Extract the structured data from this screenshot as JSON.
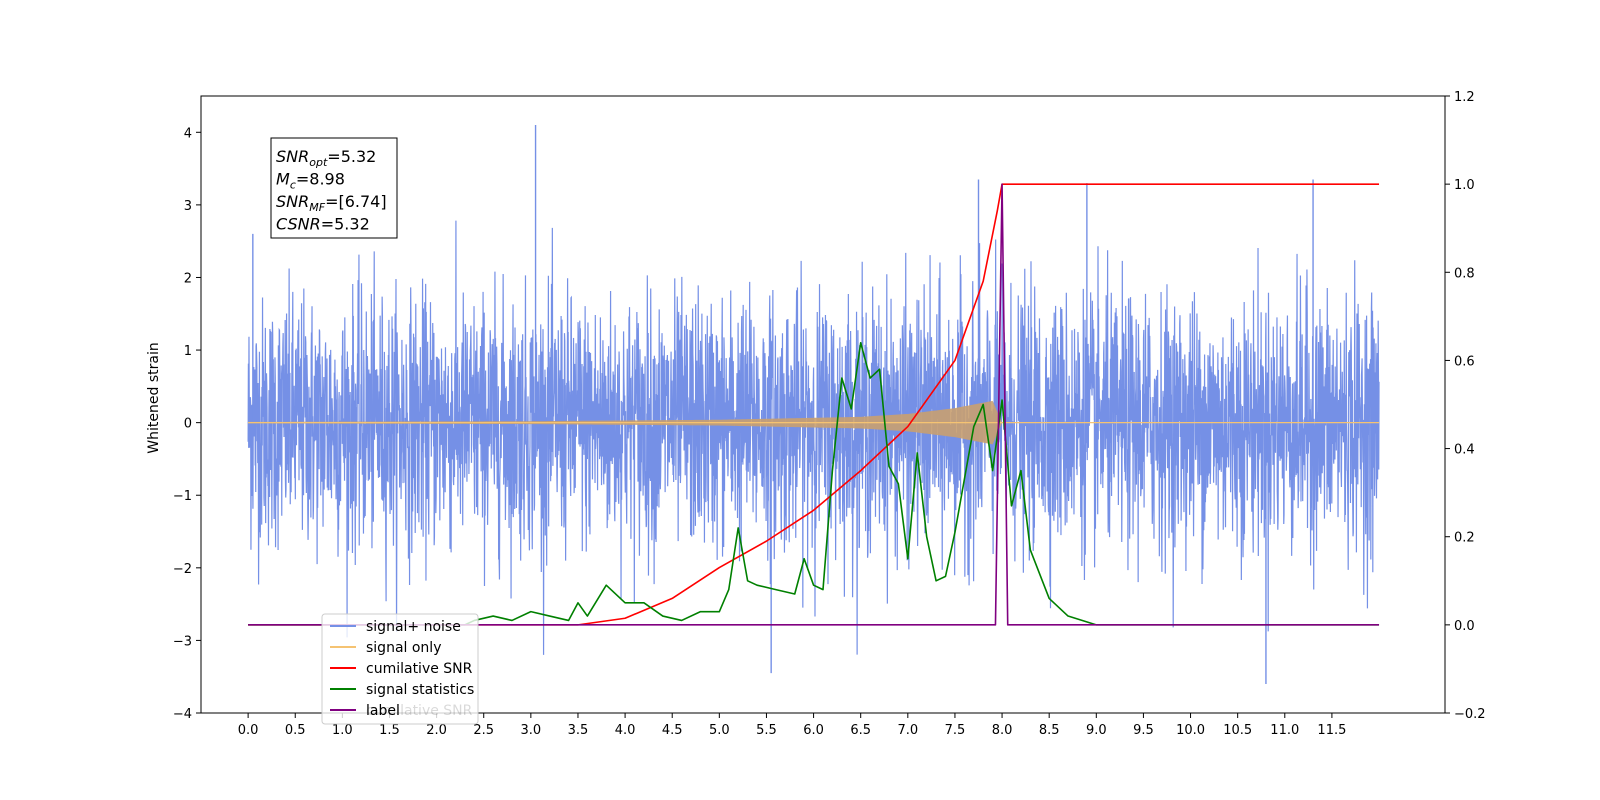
{
  "chart_data": {
    "type": "line",
    "title": "",
    "xlabel": "",
    "ylabel": "Whitened strain",
    "xlim": [
      -0.5,
      12.7
    ],
    "ylim_left": [
      -4,
      4.5
    ],
    "ylim_right": [
      -0.2,
      1.2
    ],
    "x_ticks": [
      "0.0",
      "0.5",
      "1.0",
      "1.5",
      "2.0",
      "2.5",
      "3.0",
      "3.5",
      "4.0",
      "4.5",
      "5.0",
      "5.5",
      "6.0",
      "6.5",
      "7.0",
      "7.5",
      "8.0",
      "8.5",
      "9.0",
      "9.5",
      "10.0",
      "10.5",
      "11.0",
      "11.5"
    ],
    "y_ticks_left": [
      "4",
      "3",
      "2",
      "1",
      "0",
      "−1",
      "−2",
      "−3",
      "−4"
    ],
    "y_ticks_right": [
      "1.2",
      "1.0",
      "0.8",
      "0.6",
      "0.4",
      "0.2",
      "0.0",
      "−0.2"
    ],
    "grid": false,
    "legend_position": "lower-left",
    "annotation": {
      "lines": [
        {
          "var": "SNR",
          "sub": "opt",
          "value": "=5.32"
        },
        {
          "var": "M",
          "sub": "c",
          "value": "=8.98"
        },
        {
          "var": "SNR",
          "sub": "MF",
          "value": "=[6.74]"
        },
        {
          "var": "CSNR",
          "sub": "",
          "value": "=5.32"
        }
      ]
    },
    "series": [
      {
        "name": "signal+ noise",
        "color": "#7590e6",
        "axis": "left",
        "description_range": [
          0.0,
          12.0
        ],
        "typical_amplitude": 2.0,
        "max": 4.1,
        "min": -3.6
      },
      {
        "name": "signal only",
        "color": "#f5c372",
        "axis": "left",
        "chirp_end": 8.0,
        "envelope": {
          "x": [
            0.0,
            3.0,
            5.0,
            6.5,
            7.0,
            7.5,
            7.9,
            8.0
          ],
          "y": [
            0.01,
            0.02,
            0.04,
            0.08,
            0.12,
            0.2,
            0.3,
            0.0
          ]
        }
      },
      {
        "name": "cumilative SNR",
        "color": "#ff0000",
        "axis": "right",
        "x": [
          0.0,
          3.5,
          4.0,
          4.5,
          5.0,
          5.5,
          6.0,
          6.5,
          7.0,
          7.5,
          7.8,
          7.95,
          8.0,
          11.5,
          12.0
        ],
        "y": [
          0.0,
          0.0,
          0.015,
          0.06,
          0.13,
          0.19,
          0.26,
          0.35,
          0.45,
          0.6,
          0.78,
          0.94,
          1.0,
          1.0,
          1.0
        ]
      },
      {
        "name": "signal statistics",
        "color": "#008000",
        "axis": "right",
        "x": [
          0.0,
          2.3,
          2.4,
          2.6,
          2.8,
          3.0,
          3.2,
          3.4,
          3.5,
          3.6,
          3.8,
          4.0,
          4.2,
          4.4,
          4.6,
          4.8,
          5.0,
          5.1,
          5.2,
          5.3,
          5.4,
          5.6,
          5.8,
          5.9,
          6.0,
          6.1,
          6.2,
          6.3,
          6.4,
          6.5,
          6.6,
          6.7,
          6.8,
          6.9,
          7.0,
          7.1,
          7.2,
          7.3,
          7.4,
          7.5,
          7.6,
          7.7,
          7.8,
          7.9,
          8.0,
          8.1,
          8.2,
          8.3,
          8.5,
          8.7,
          9.0,
          11.5,
          12.0
        ],
        "y": [
          0.0,
          0.0,
          0.01,
          0.02,
          0.01,
          0.03,
          0.02,
          0.01,
          0.05,
          0.02,
          0.09,
          0.05,
          0.05,
          0.02,
          0.01,
          0.03,
          0.03,
          0.08,
          0.22,
          0.1,
          0.09,
          0.08,
          0.07,
          0.15,
          0.09,
          0.08,
          0.35,
          0.56,
          0.49,
          0.64,
          0.56,
          0.58,
          0.36,
          0.32,
          0.15,
          0.39,
          0.2,
          0.1,
          0.11,
          0.21,
          0.33,
          0.45,
          0.5,
          0.35,
          0.51,
          0.27,
          0.35,
          0.17,
          0.06,
          0.02,
          0.0,
          0.0,
          0.0
        ]
      },
      {
        "name": "label",
        "color": "#800080",
        "axis": "right",
        "x": [
          0.0,
          7.93,
          8.0,
          8.06,
          12.0
        ],
        "y": [
          0.0,
          0.0,
          1.0,
          0.0,
          0.0
        ]
      }
    ],
    "legend_extra_faded": "cumilative SNR"
  }
}
